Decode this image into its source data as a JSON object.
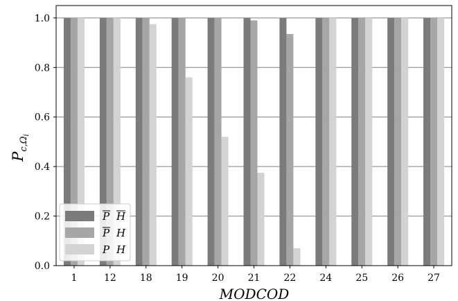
{
  "chart_data": {
    "type": "bar",
    "title": "",
    "xlabel": "MODCOD",
    "ylabel": "P",
    "ylabel_sub": "c,Ω",
    "ylabel_sub2": "i",
    "categories": [
      "1",
      "12",
      "18",
      "19",
      "20",
      "21",
      "22",
      "24",
      "25",
      "26",
      "27"
    ],
    "series": [
      {
        "name": "P H",
        "overline": true,
        "color": "#7b7b7b",
        "values": [
          1.0,
          1.0,
          1.0,
          1.0,
          1.0,
          1.0,
          1.0,
          1.0,
          1.0,
          1.0,
          1.0
        ]
      },
      {
        "name": "P H",
        "overline_p": true,
        "color": "#a6a6a6",
        "values": [
          1.0,
          1.0,
          1.0,
          1.0,
          1.0,
          0.99,
          0.935,
          1.0,
          1.0,
          1.0,
          1.0
        ]
      },
      {
        "name": "P H",
        "color": "#d3d3d3",
        "values": [
          1.0,
          1.0,
          0.975,
          0.76,
          0.52,
          0.375,
          0.07,
          1.0,
          1.0,
          1.0,
          1.0
        ]
      }
    ],
    "ylim": [
      0.0,
      1.05
    ],
    "yticks": [
      "0.0",
      "0.2",
      "0.4",
      "0.6",
      "0.8",
      "1.0"
    ],
    "grid": "y",
    "legend_position": "lower-left"
  }
}
